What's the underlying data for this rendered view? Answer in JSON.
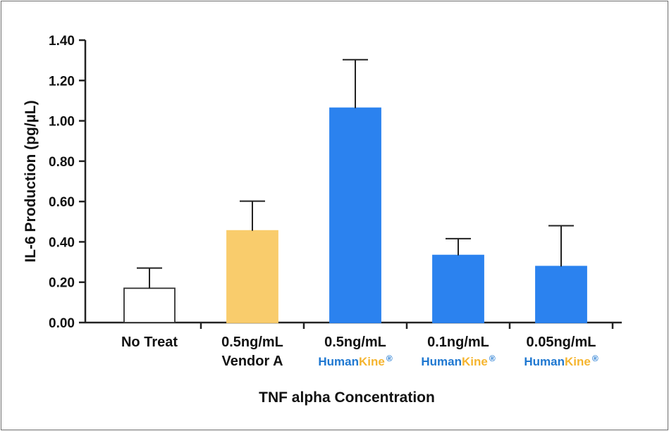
{
  "chart_data": {
    "type": "bar",
    "title": "",
    "xlabel": "TNF alpha  Concentration",
    "ylabel": "IL-6 Production (pg/µL)",
    "ylim": [
      0,
      1.4
    ],
    "yticks": [
      "0.00",
      "0.20",
      "0.40",
      "0.60",
      "0.80",
      "1.00",
      "1.20",
      "1.40"
    ],
    "categories": [
      {
        "line1": "No Treat",
        "line2": "",
        "brand_a": "",
        "brand_b": "",
        "brand_mark": ""
      },
      {
        "line1": "0.5ng/mL",
        "line2": "Vendor A",
        "brand_a": "",
        "brand_b": "",
        "brand_mark": ""
      },
      {
        "line1": "0.5ng/mL",
        "line2": "",
        "brand_a": "Human",
        "brand_b": "Kine",
        "brand_mark": "®"
      },
      {
        "line1": "0.1ng/mL",
        "line2": "",
        "brand_a": "Human",
        "brand_b": "Kine",
        "brand_mark": "®"
      },
      {
        "line1": "0.05ng/mL",
        "line2": "",
        "brand_a": "Human",
        "brand_b": "Kine",
        "brand_mark": "®"
      }
    ],
    "values": [
      0.17,
      0.455,
      1.063,
      0.333,
      0.278
    ],
    "errors": [
      0.1,
      0.147,
      0.24,
      0.083,
      0.202
    ],
    "bar_colors": [
      "#ffffff",
      "#f9cc6c",
      "#2b82ef",
      "#2b82ef",
      "#2b82ef"
    ],
    "bar_outline": [
      "#333333",
      "#f9cc6c",
      "#2b82ef",
      "#2b82ef",
      "#2b82ef"
    ],
    "brand_colors": {
      "human": "#1f78d1",
      "kine": "#f5b530"
    },
    "grid": false,
    "legend": "none"
  }
}
